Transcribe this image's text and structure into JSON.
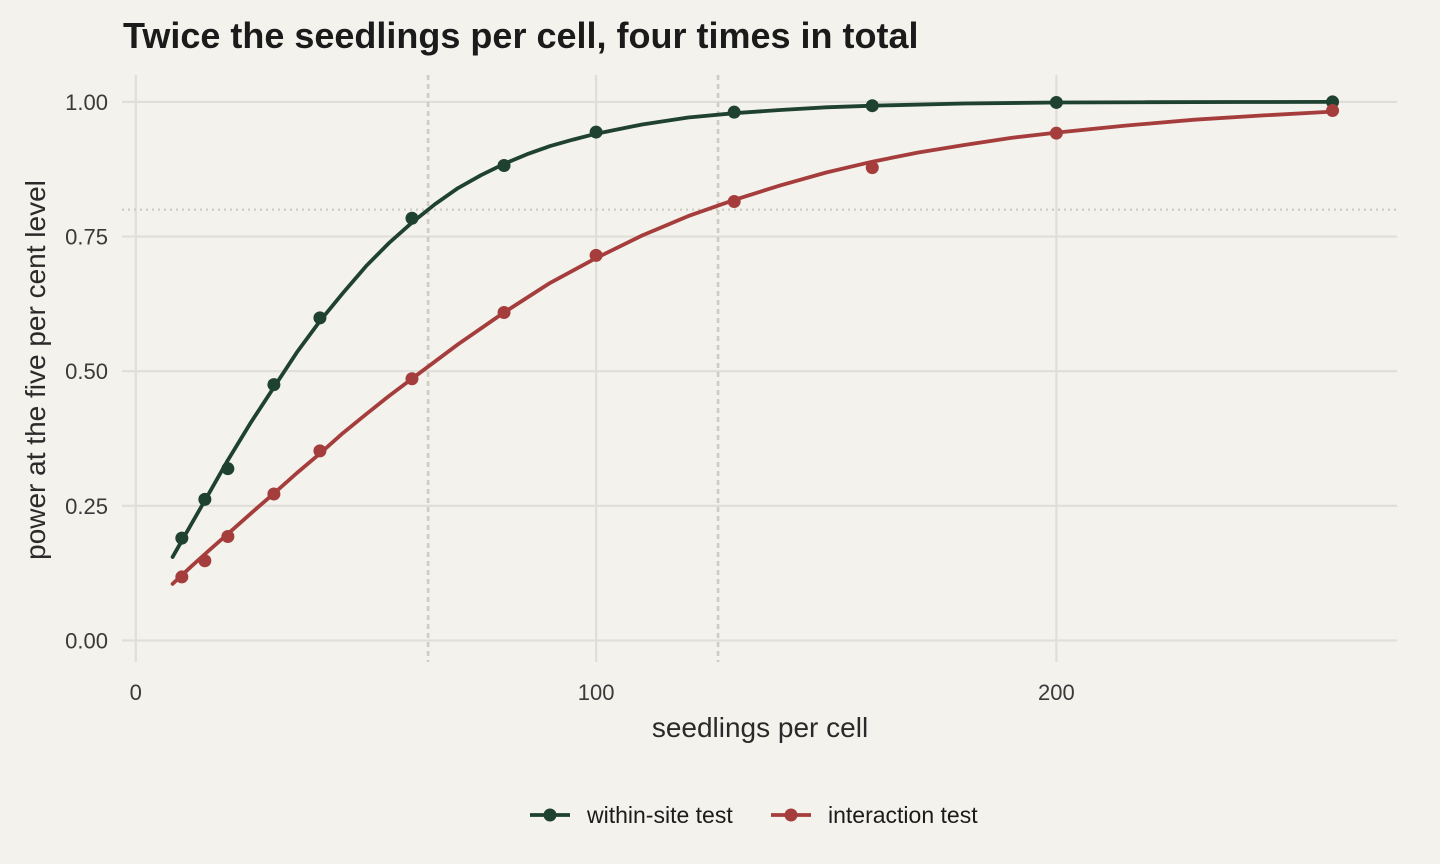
{
  "colors": {
    "background": "#f3f2ec",
    "grid": "#e0ded7",
    "reference": "#cfcdc2",
    "within": "#1e4130",
    "interaction": "#a63d3d"
  },
  "chart_data": {
    "type": "line",
    "title": "Twice the seedlings per cell, four times in total",
    "xlabel": "seedlings per cell",
    "ylabel": "power at the five per cent level",
    "xlim": [
      -3,
      274
    ],
    "ylim": [
      -0.04,
      1.05
    ],
    "x_ticks": [
      0,
      100,
      200
    ],
    "y_ticks": [
      0,
      0.25,
      0.5,
      0.75,
      1
    ],
    "x_tick_labels": [
      "0",
      "100",
      "200"
    ],
    "y_tick_labels": [
      "0.00",
      "0.25",
      "0.50",
      "0.75",
      "1.00"
    ],
    "grid": true,
    "legend_position": "bottom",
    "reference_lines": {
      "horizontal_y": 0.8,
      "vertical_x": [
        63.5,
        126.5
      ]
    },
    "series": [
      {
        "name": "within-site test",
        "color": "#1e4130",
        "points": {
          "x": [
            10,
            15,
            20,
            30,
            40,
            60,
            80,
            100,
            130,
            160,
            200,
            260
          ],
          "y": [
            0.19,
            0.262,
            0.319,
            0.475,
            0.599,
            0.784,
            0.882,
            0.944,
            0.981,
            0.993,
            0.999,
            1.0
          ]
        },
        "curve": {
          "x": [
            8,
            12,
            16,
            20,
            25,
            30,
            35,
            40,
            45,
            50,
            55,
            60,
            65,
            70,
            75,
            80,
            85,
            90,
            95,
            100,
            110,
            120,
            130,
            140,
            150,
            160,
            180,
            200,
            220,
            240,
            260
          ],
          "y": [
            0.155,
            0.215,
            0.275,
            0.335,
            0.405,
            0.47,
            0.535,
            0.593,
            0.645,
            0.695,
            0.738,
            0.776,
            0.81,
            0.84,
            0.864,
            0.885,
            0.903,
            0.918,
            0.93,
            0.941,
            0.958,
            0.971,
            0.979,
            0.985,
            0.99,
            0.993,
            0.997,
            0.999,
            0.9995,
            0.9998,
            1.0
          ]
        }
      },
      {
        "name": "interaction test",
        "color": "#a63d3d",
        "points": {
          "x": [
            10,
            15,
            20,
            30,
            40,
            60,
            80,
            100,
            130,
            160,
            200,
            260
          ],
          "y": [
            0.118,
            0.148,
            0.193,
            0.272,
            0.352,
            0.486,
            0.609,
            0.715,
            0.815,
            0.878,
            0.942,
            0.984
          ]
        },
        "curve": {
          "x": [
            8,
            12,
            16,
            20,
            25,
            30,
            35,
            40,
            45,
            50,
            55,
            60,
            70,
            80,
            90,
            100,
            110,
            120,
            130,
            140,
            150,
            160,
            170,
            180,
            190,
            200,
            215,
            230,
            245,
            260
          ],
          "y": [
            0.105,
            0.137,
            0.168,
            0.198,
            0.236,
            0.273,
            0.311,
            0.347,
            0.385,
            0.42,
            0.454,
            0.486,
            0.55,
            0.609,
            0.664,
            0.71,
            0.752,
            0.788,
            0.818,
            0.845,
            0.869,
            0.889,
            0.906,
            0.92,
            0.933,
            0.943,
            0.956,
            0.967,
            0.975,
            0.982
          ]
        }
      }
    ]
  }
}
